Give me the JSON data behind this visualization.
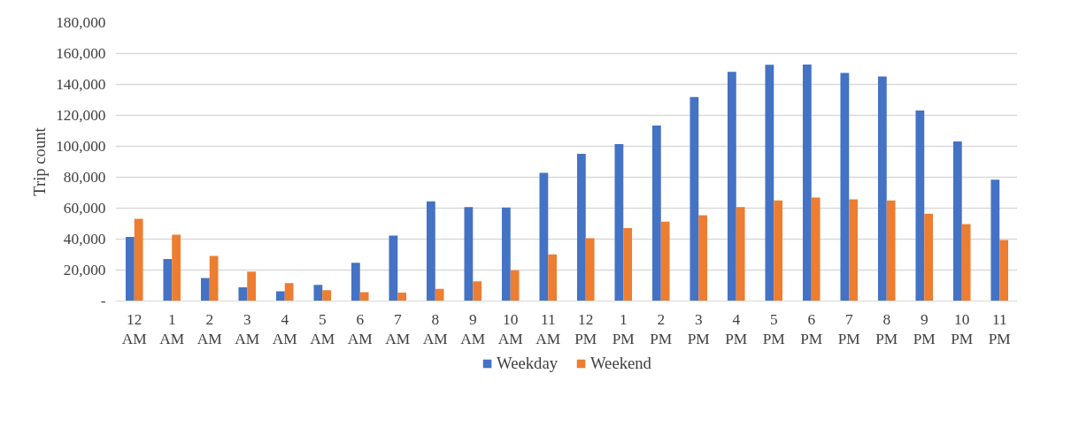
{
  "chart_data": {
    "type": "bar",
    "ylabel": "Trip count",
    "categories": [
      "12 AM",
      "1 AM",
      "2 AM",
      "3 AM",
      "4 AM",
      "5 AM",
      "6 AM",
      "7 AM",
      "8 AM",
      "9 AM",
      "10 AM",
      "11 AM",
      "12 PM",
      "1 PM",
      "2 PM",
      "3 PM",
      "4 PM",
      "5 PM",
      "6 PM",
      "7 PM",
      "8 PM",
      "9 PM",
      "10 PM",
      "11 PM"
    ],
    "series": [
      {
        "name": "Weekday",
        "color": "#4472c4",
        "values": [
          41500,
          27100,
          14800,
          8900,
          6300,
          10500,
          24700,
          42300,
          64400,
          60700,
          60400,
          82900,
          95100,
          101500,
          113500,
          131800,
          148200,
          152700,
          152900,
          147500,
          145100,
          123100,
          103200,
          78500
        ]
      },
      {
        "name": "Weekend",
        "color": "#ed7d31",
        "values": [
          53200,
          42800,
          29200,
          19000,
          11600,
          7000,
          5700,
          5500,
          7900,
          12700,
          19900,
          30100,
          40600,
          47100,
          51300,
          55400,
          60700,
          65000,
          66800,
          65700,
          65000,
          56500,
          49700,
          39500
        ]
      }
    ],
    "ylim": [
      0,
      180000
    ],
    "yticks": [
      {
        "value": 0,
        "label": "-"
      },
      {
        "value": 20000,
        "label": "20,000"
      },
      {
        "value": 40000,
        "label": "40,000"
      },
      {
        "value": 60000,
        "label": "60,000"
      },
      {
        "value": 80000,
        "label": "80,000"
      },
      {
        "value": 100000,
        "label": "100,000"
      },
      {
        "value": 120000,
        "label": "120,000"
      },
      {
        "value": 140000,
        "label": "140,000"
      },
      {
        "value": 160000,
        "label": "160,000"
      },
      {
        "value": 180000,
        "label": "180,000"
      }
    ],
    "grid": "y",
    "legend": "bottom"
  }
}
